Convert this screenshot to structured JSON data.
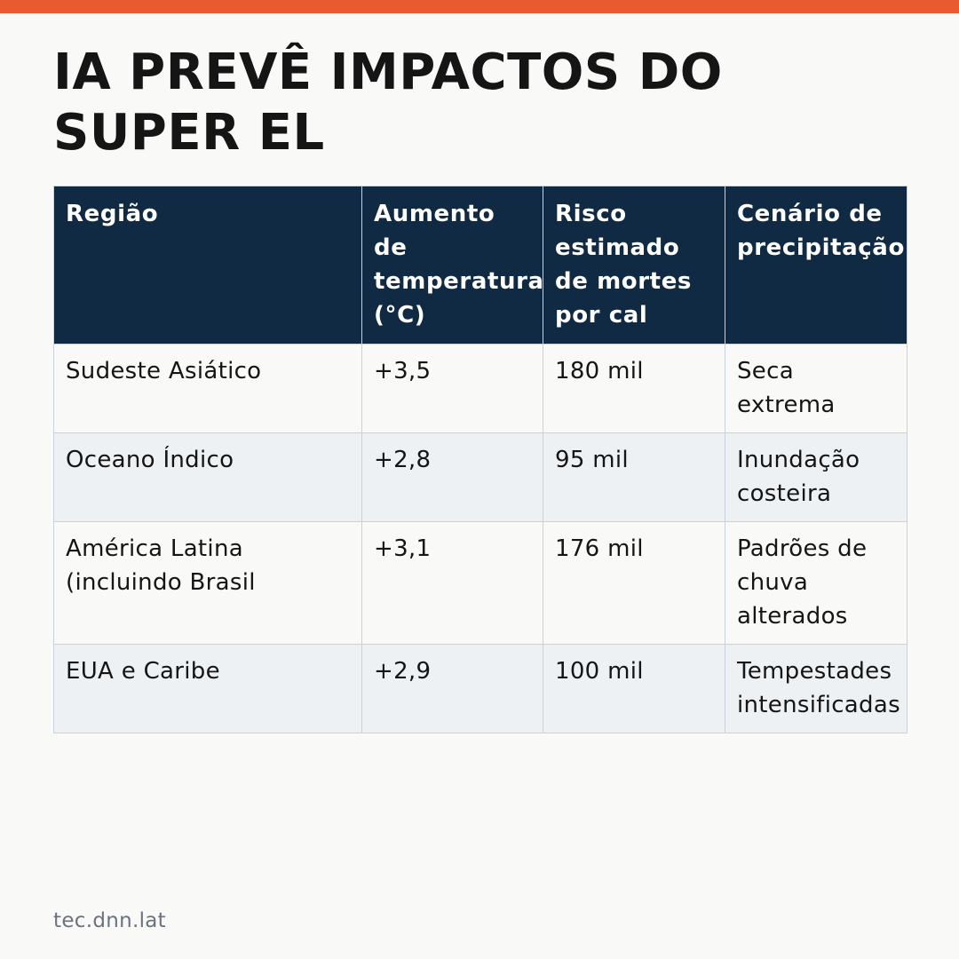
{
  "colors": {
    "accent_bar": "#e85a30",
    "header_bg": "#112a44",
    "header_text": "#ffffff",
    "row_alt_bg": "#edf1f4",
    "page_bg": "#f9f9f7",
    "border": "#c9d2dc",
    "footer_text": "#6b7280"
  },
  "headline": "IA PREVÊ IMPACTOS DO SUPER EL",
  "table": {
    "headers": [
      "Região",
      "Aumento de temperatura (°C)",
      "Risco estimado de mortes por cal",
      "Cenário de precipitação"
    ],
    "rows": [
      [
        "Sudeste Asiático",
        "+3,5",
        "180 mil",
        "Seca extrema"
      ],
      [
        "Oceano Índico",
        "+2,8",
        "95 mil",
        "Inundação costeira"
      ],
      [
        "América Latina (incluindo Brasil",
        "+3,1",
        "176 mil",
        "Padrões de chuva alterados"
      ],
      [
        "EUA e Caribe",
        "+2,9",
        "100 mil",
        "Tempestades intensificadas"
      ]
    ]
  },
  "footer": "tec.dnn.lat"
}
